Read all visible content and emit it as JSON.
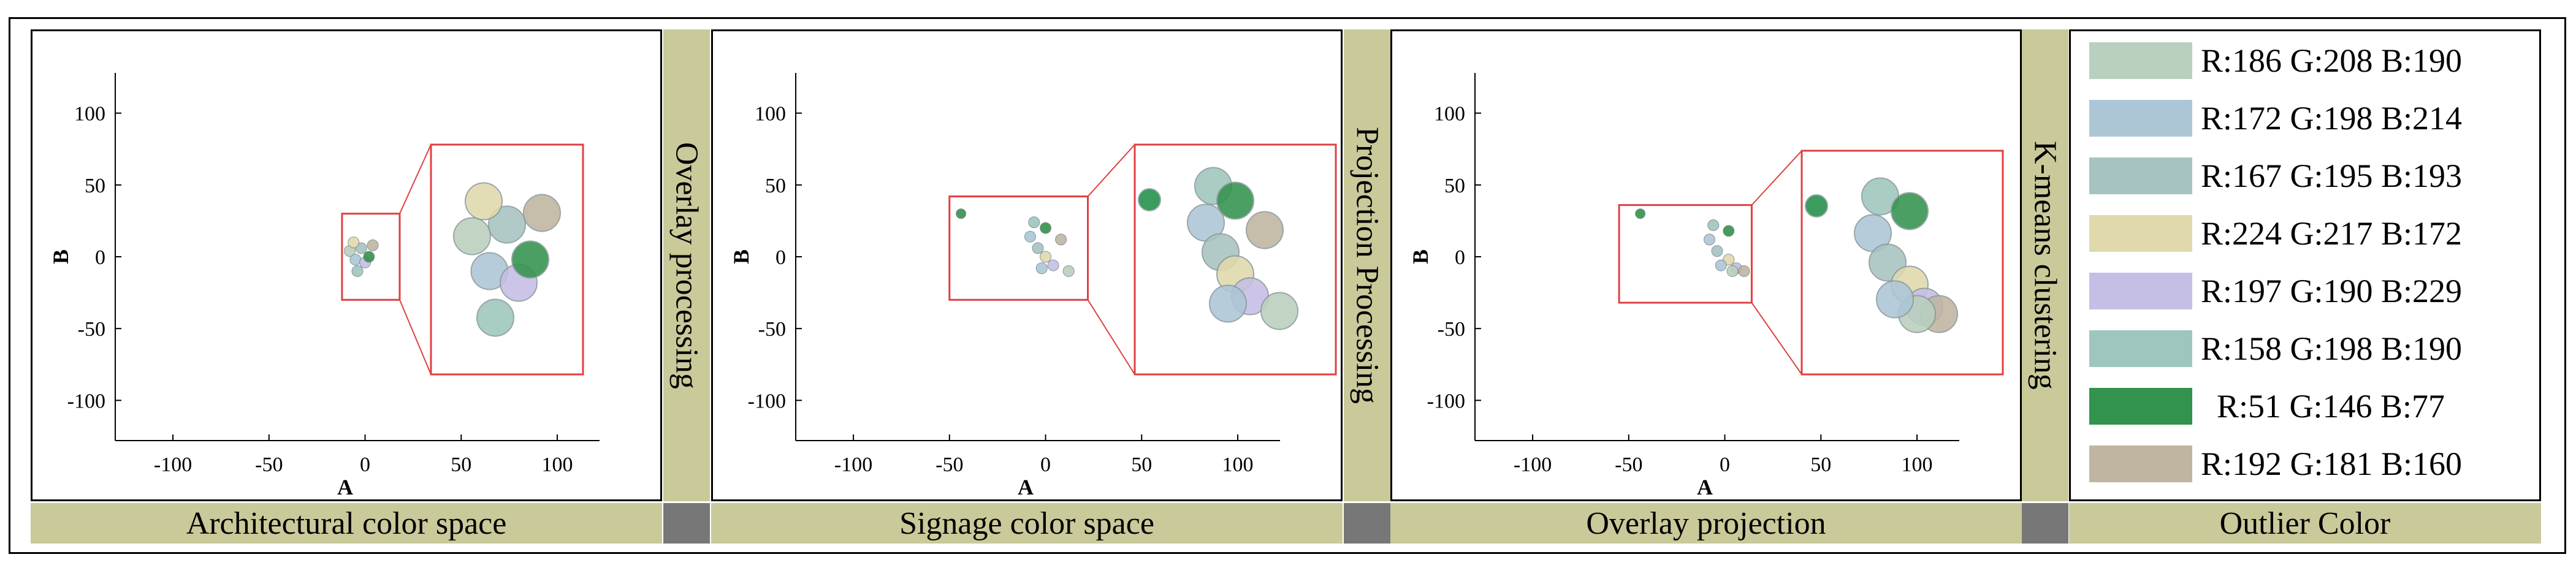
{
  "panels": [
    {
      "id": "architectural",
      "caption": "Architectural color space"
    },
    {
      "id": "signage",
      "caption": "Signage color space"
    },
    {
      "id": "overlay",
      "caption": "Overlay projection"
    }
  ],
  "steps": [
    "Overlay processing",
    "Projection Processing",
    "K-means clustering"
  ],
  "legend": {
    "caption": "Outlier Color",
    "items": [
      {
        "label": "R:186 G:208 B:190",
        "color": "#bad0be"
      },
      {
        "label": "R:172 G:198 B:214",
        "color": "#acc6d6"
      },
      {
        "label": "R:167 G:195 B:193",
        "color": "#a7c3c1"
      },
      {
        "label": "R:224 G:217 B:172",
        "color": "#e0d9ac"
      },
      {
        "label": "R:197 G:190 B:229",
        "color": "#c5bee5"
      },
      {
        "label": "R:158 G:198 B:190",
        "color": "#9ec6be"
      },
      {
        "label": "R:51 G:146 B:77",
        "color": "#33924d"
      },
      {
        "label": "R:192 G:181 B:160",
        "color": "#c0b5a0"
      }
    ]
  },
  "axes": {
    "x_label": "A",
    "y_label": "B",
    "x_ticks": [
      "-100",
      "-50",
      "0",
      "50",
      "100"
    ],
    "y_ticks": [
      "100",
      "50",
      "0",
      "-50",
      "-100"
    ]
  },
  "chart_data": [
    {
      "type": "scatter",
      "xlabel": "A",
      "ylabel": "B",
      "xlim": [
        -130,
        122
      ],
      "ylim": [
        -128,
        128
      ],
      "grid": false,
      "series": [
        {
          "values": [
            [
              -8,
              4
            ],
            [
              -5,
              -2
            ],
            [
              -2,
              6
            ],
            [
              -6,
              10
            ],
            [
              0,
              -4
            ],
            [
              -4,
              -10
            ],
            [
              2,
              0
            ],
            [
              4,
              8
            ]
          ]
        }
      ]
    },
    {
      "type": "scatter",
      "xlabel": "A",
      "ylabel": "B",
      "xlim": [
        -130,
        122
      ],
      "ylim": [
        -128,
        128
      ],
      "grid": false,
      "series": [
        {
          "values": [
            [
              -44,
              30
            ],
            [
              -8,
              14
            ],
            [
              -4,
              6
            ],
            [
              0,
              0
            ],
            [
              4,
              -6
            ],
            [
              -6,
              24
            ],
            [
              0,
              20
            ],
            [
              8,
              12
            ],
            [
              12,
              -10
            ],
            [
              -2,
              -8
            ]
          ]
        }
      ]
    },
    {
      "type": "scatter",
      "xlabel": "A",
      "ylabel": "B",
      "xlim": [
        -130,
        122
      ],
      "ylim": [
        -128,
        128
      ],
      "grid": false,
      "series": [
        {
          "values": [
            [
              -44,
              30
            ],
            [
              -8,
              12
            ],
            [
              -4,
              4
            ],
            [
              2,
              -2
            ],
            [
              6,
              -8
            ],
            [
              -6,
              22
            ],
            [
              2,
              18
            ],
            [
              10,
              -10
            ],
            [
              4,
              -10
            ],
            [
              -2,
              -6
            ]
          ]
        }
      ]
    }
  ]
}
